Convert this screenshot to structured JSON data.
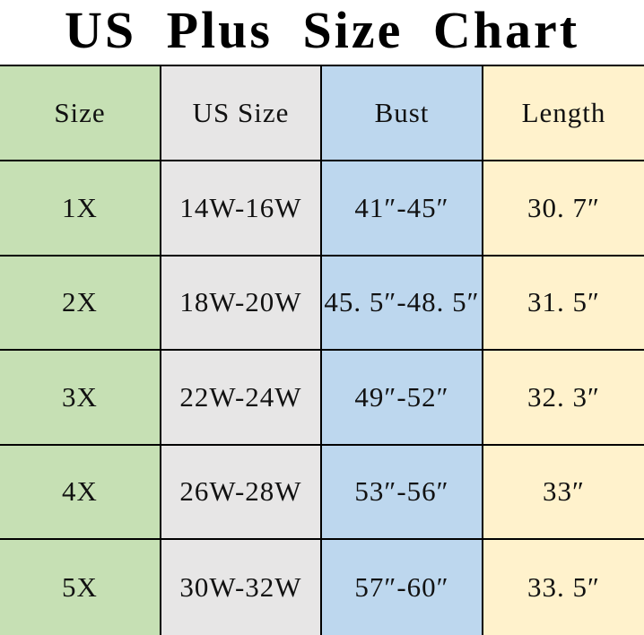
{
  "title": "US Plus Size Chart",
  "chart_data": {
    "type": "table",
    "title": "US Plus Size Chart",
    "columns": [
      "Size",
      "US Size",
      "Bust",
      "Length"
    ],
    "rows": [
      [
        "1X",
        "14W-16W",
        "41″-45″",
        "30. 7″"
      ],
      [
        "2X",
        "18W-20W",
        "45. 5″-48. 5″",
        "31. 5″"
      ],
      [
        "3X",
        "22W-24W",
        "49″-52″",
        "32. 3″"
      ],
      [
        "4X",
        "26W-28W",
        "53″-56″",
        "33″"
      ],
      [
        "5X",
        "30W-32W",
        "57″-60″",
        "33. 5″"
      ]
    ],
    "layout_hints": {
      "column_fill_colors": [
        "#c6e0b4",
        "#e7e6e6",
        "#bdd7ee",
        "#fff2cc"
      ],
      "gridline_color": "#000000",
      "outer_border": "top only; left/right/bottom cropped at image edge"
    }
  },
  "colors": {
    "size_column": "#c6e0b4",
    "us_size_column": "#e7e6e6",
    "bust_column": "#bdd7ee",
    "length_column": "#fff2cc",
    "border": "#000000",
    "text": "#111111",
    "background": "#ffffff"
  }
}
